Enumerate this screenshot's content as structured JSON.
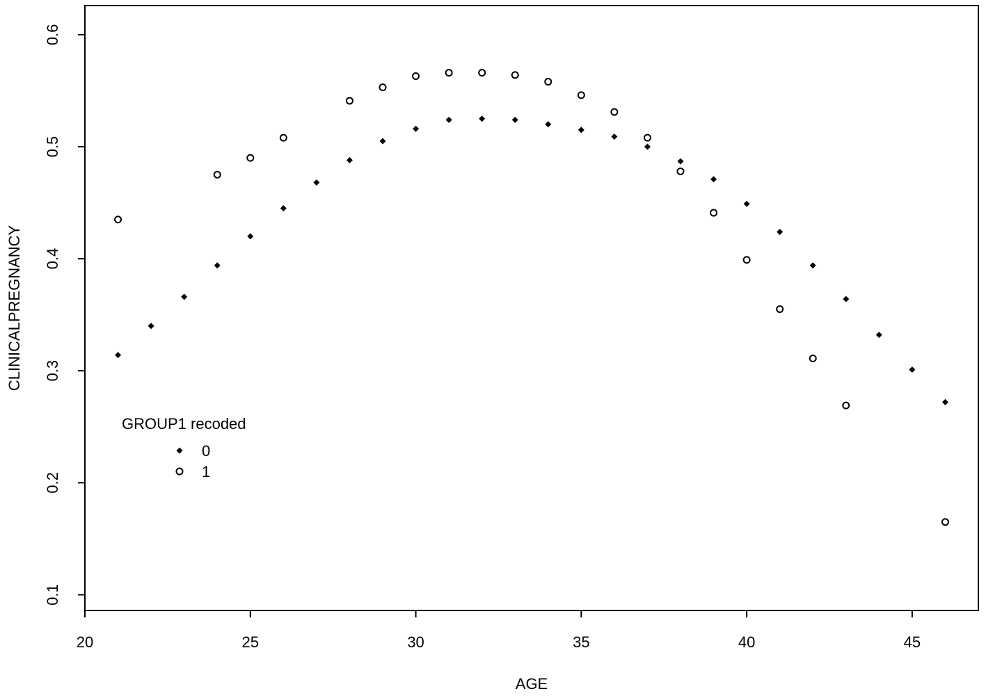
{
  "chart_data": {
    "type": "scatter",
    "x_label": "AGE",
    "y_label": "CLINICALPREGNANCY",
    "legend_title": "GROUP1 recoded",
    "legend_position": "left",
    "xlim": [
      20,
      47
    ],
    "ylim": [
      0.086,
      0.626
    ],
    "xticks": [
      20,
      25,
      30,
      35,
      40,
      45
    ],
    "yticks": [
      0.1,
      0.2,
      0.3,
      0.4,
      0.5,
      0.6
    ],
    "series": [
      {
        "name": "0",
        "color": "#000000",
        "marker": "filled",
        "x": [
          21,
          22,
          23,
          24,
          25,
          26,
          27,
          28,
          29,
          30,
          31,
          32,
          33,
          34,
          35,
          36,
          37,
          38,
          39,
          40,
          41,
          42,
          43,
          44,
          45,
          46
        ],
        "values": [
          0.314,
          0.34,
          0.366,
          0.394,
          0.42,
          0.445,
          0.468,
          0.488,
          0.505,
          0.516,
          0.524,
          0.525,
          0.524,
          0.52,
          0.515,
          0.509,
          0.5,
          0.487,
          0.471,
          0.449,
          0.424,
          0.394,
          0.364,
          0.332,
          0.301,
          0.272
        ]
      },
      {
        "name": "1",
        "color": "#000000",
        "marker": "open",
        "x": [
          21,
          24,
          25,
          26,
          28,
          29,
          30,
          31,
          32,
          33,
          34,
          35,
          36,
          37,
          38,
          39,
          40,
          41,
          42,
          43,
          46
        ],
        "values": [
          0.435,
          0.475,
          0.49,
          0.508,
          0.541,
          0.553,
          0.563,
          0.566,
          0.566,
          0.564,
          0.558,
          0.546,
          0.531,
          0.508,
          0.478,
          0.441,
          0.399,
          0.355,
          0.311,
          0.269,
          0.165
        ]
      }
    ]
  }
}
